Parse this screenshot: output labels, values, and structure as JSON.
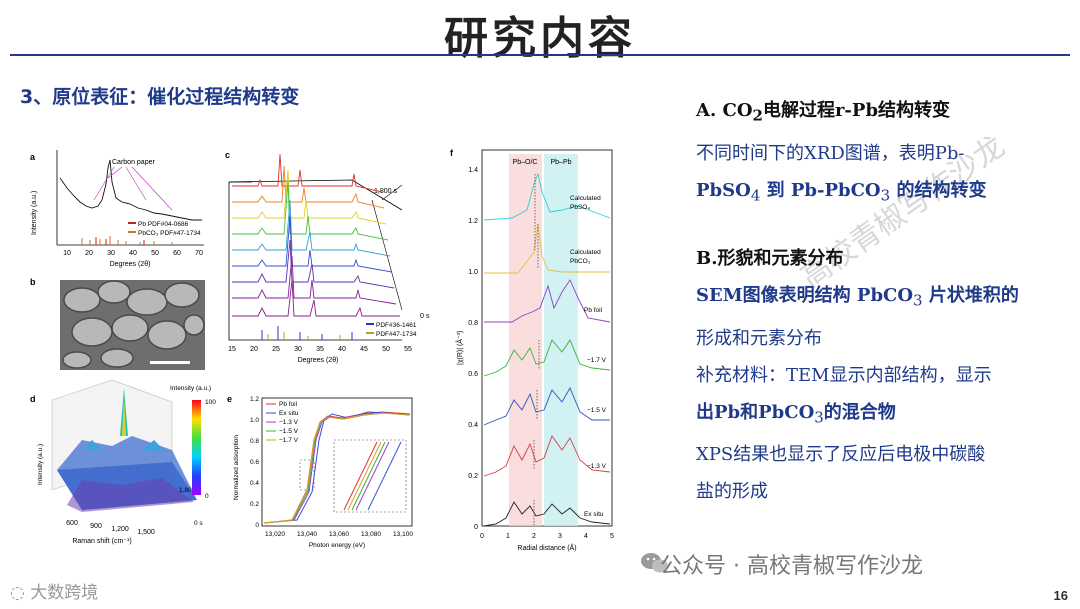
{
  "title": "研究内容",
  "section_heading": "3、原位表征：催化过程结构转变",
  "text": {
    "a_head_prefix": "A.  CO",
    "a_head_sub": "2",
    "a_head_suffix": "电解过程r-Pb结构转变",
    "a_line1": "不同时间下的XRD图谱，表明Pb-",
    "a_line2_pre": "PbSO",
    "a_line2_sub1": "4",
    "a_line2_mid": " 到 Pb-PbCO",
    "a_line2_sub2": "3",
    "a_line2_suf": " 的结构转变",
    "b_head": "B.形貌和元素分布",
    "b_line1_pre": "SEM图像表明结构 PbCO",
    "b_line1_sub": "3",
    "b_line1_suf": " 片状堆积的",
    "b_line2": "形成和元素分布",
    "b_line3": "补充材料：TEM显示内部结构，显示",
    "b_line4_pre": "出Pb和PbCO",
    "b_line4_sub": "3",
    "b_line4_suf": "的混合物",
    "b_line5": "XPS结果也显示了反应后电极中碳酸",
    "b_line6": "盐的形成"
  },
  "footer": "公众号 · 高校青椒写作沙龙",
  "logo_text": "大数跨境",
  "page_number": "16",
  "watermark_diag": "高校青椒写作沙龙",
  "figure": {
    "a": {
      "label": "a",
      "ylabel": "Intensity (a.u.)",
      "xlabel": "Degrees (2θ)",
      "ticks": [
        "10",
        "20",
        "30",
        "40",
        "50",
        "60",
        "70"
      ],
      "annot": "Carbon paper",
      "leg1": "Pb PDF#04-0686",
      "leg2": "PbCO₃ PDF#47-1734"
    },
    "b": {
      "label": "b"
    },
    "c": {
      "label": "c",
      "time_top": "1,800 s",
      "time_bot": "0 s",
      "xlabel": "Degrees (2θ)",
      "ticks": [
        "15",
        "20",
        "25",
        "30",
        "35",
        "40",
        "45",
        "50",
        "55"
      ],
      "leg1": "PDF#36-1461",
      "leg2": "PDF#47-1734"
    },
    "d": {
      "label": "d",
      "ylabel": "Intensity (a.u.)",
      "xlabel": "Raman shift (cm⁻¹)",
      "ticks": [
        "600",
        "900",
        "1,200",
        "1,500"
      ],
      "cbar_title": "Intensity (a.u.)",
      "cbar_max": "100",
      "cbar_min": "0",
      "t_top": "1,800 s",
      "t_bot": "0 s"
    },
    "e": {
      "label": "e",
      "ylabel": "Normalized adsorption",
      "xlabel": "Photon energy (eV)",
      "yticks": [
        "0",
        "0.2",
        "0.4",
        "0.6",
        "0.8",
        "1.0",
        "1.2"
      ],
      "xticks": [
        "13,020",
        "13,040",
        "13,060",
        "13,080",
        "13,100"
      ],
      "legend": [
        "Pb foil",
        "Ex situ",
        "−1.3 V",
        "−1.5 V",
        "−1.7 V"
      ]
    },
    "f": {
      "label": "f",
      "ylabel": "|χ(R)| (Å⁻³)",
      "xlabel": "Radial distance (Å)",
      "yticks": [
        "0",
        "0.2",
        "0.4",
        "0.6",
        "0.8",
        "1.0",
        "1.2",
        "1.4"
      ],
      "xticks": [
        "0",
        "1",
        "2",
        "3",
        "4",
        "5"
      ],
      "band1": "Pb–O/C",
      "band2": "Pb–Pb",
      "labels": [
        "Calculated",
        "PbSO₄",
        "Calculated",
        "PbCO₃",
        "Pb foil",
        "−1.7 V",
        "−1.5 V",
        "−1.3 V",
        "Ex situ"
      ]
    }
  },
  "colors": {
    "heading": "#1f3a8a",
    "rule": "#1f3a8a"
  }
}
